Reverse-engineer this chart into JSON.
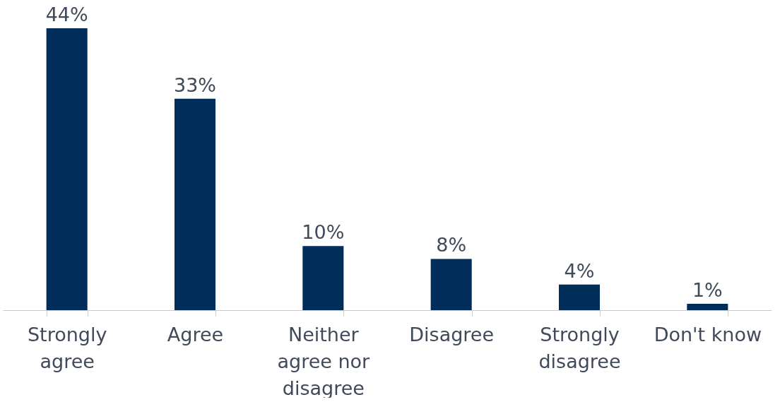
{
  "chart_data": {
    "type": "bar",
    "categories": [
      "Strongly agree",
      "Agree",
      "Neither agree nor disagree",
      "Disagree",
      "Strongly disagree",
      "Don't know"
    ],
    "values": [
      44,
      33,
      10,
      8,
      4,
      1
    ],
    "value_labels": [
      "44%",
      "33%",
      "10%",
      "8%",
      "4%",
      "1%"
    ],
    "color": "#002d5a"
  }
}
